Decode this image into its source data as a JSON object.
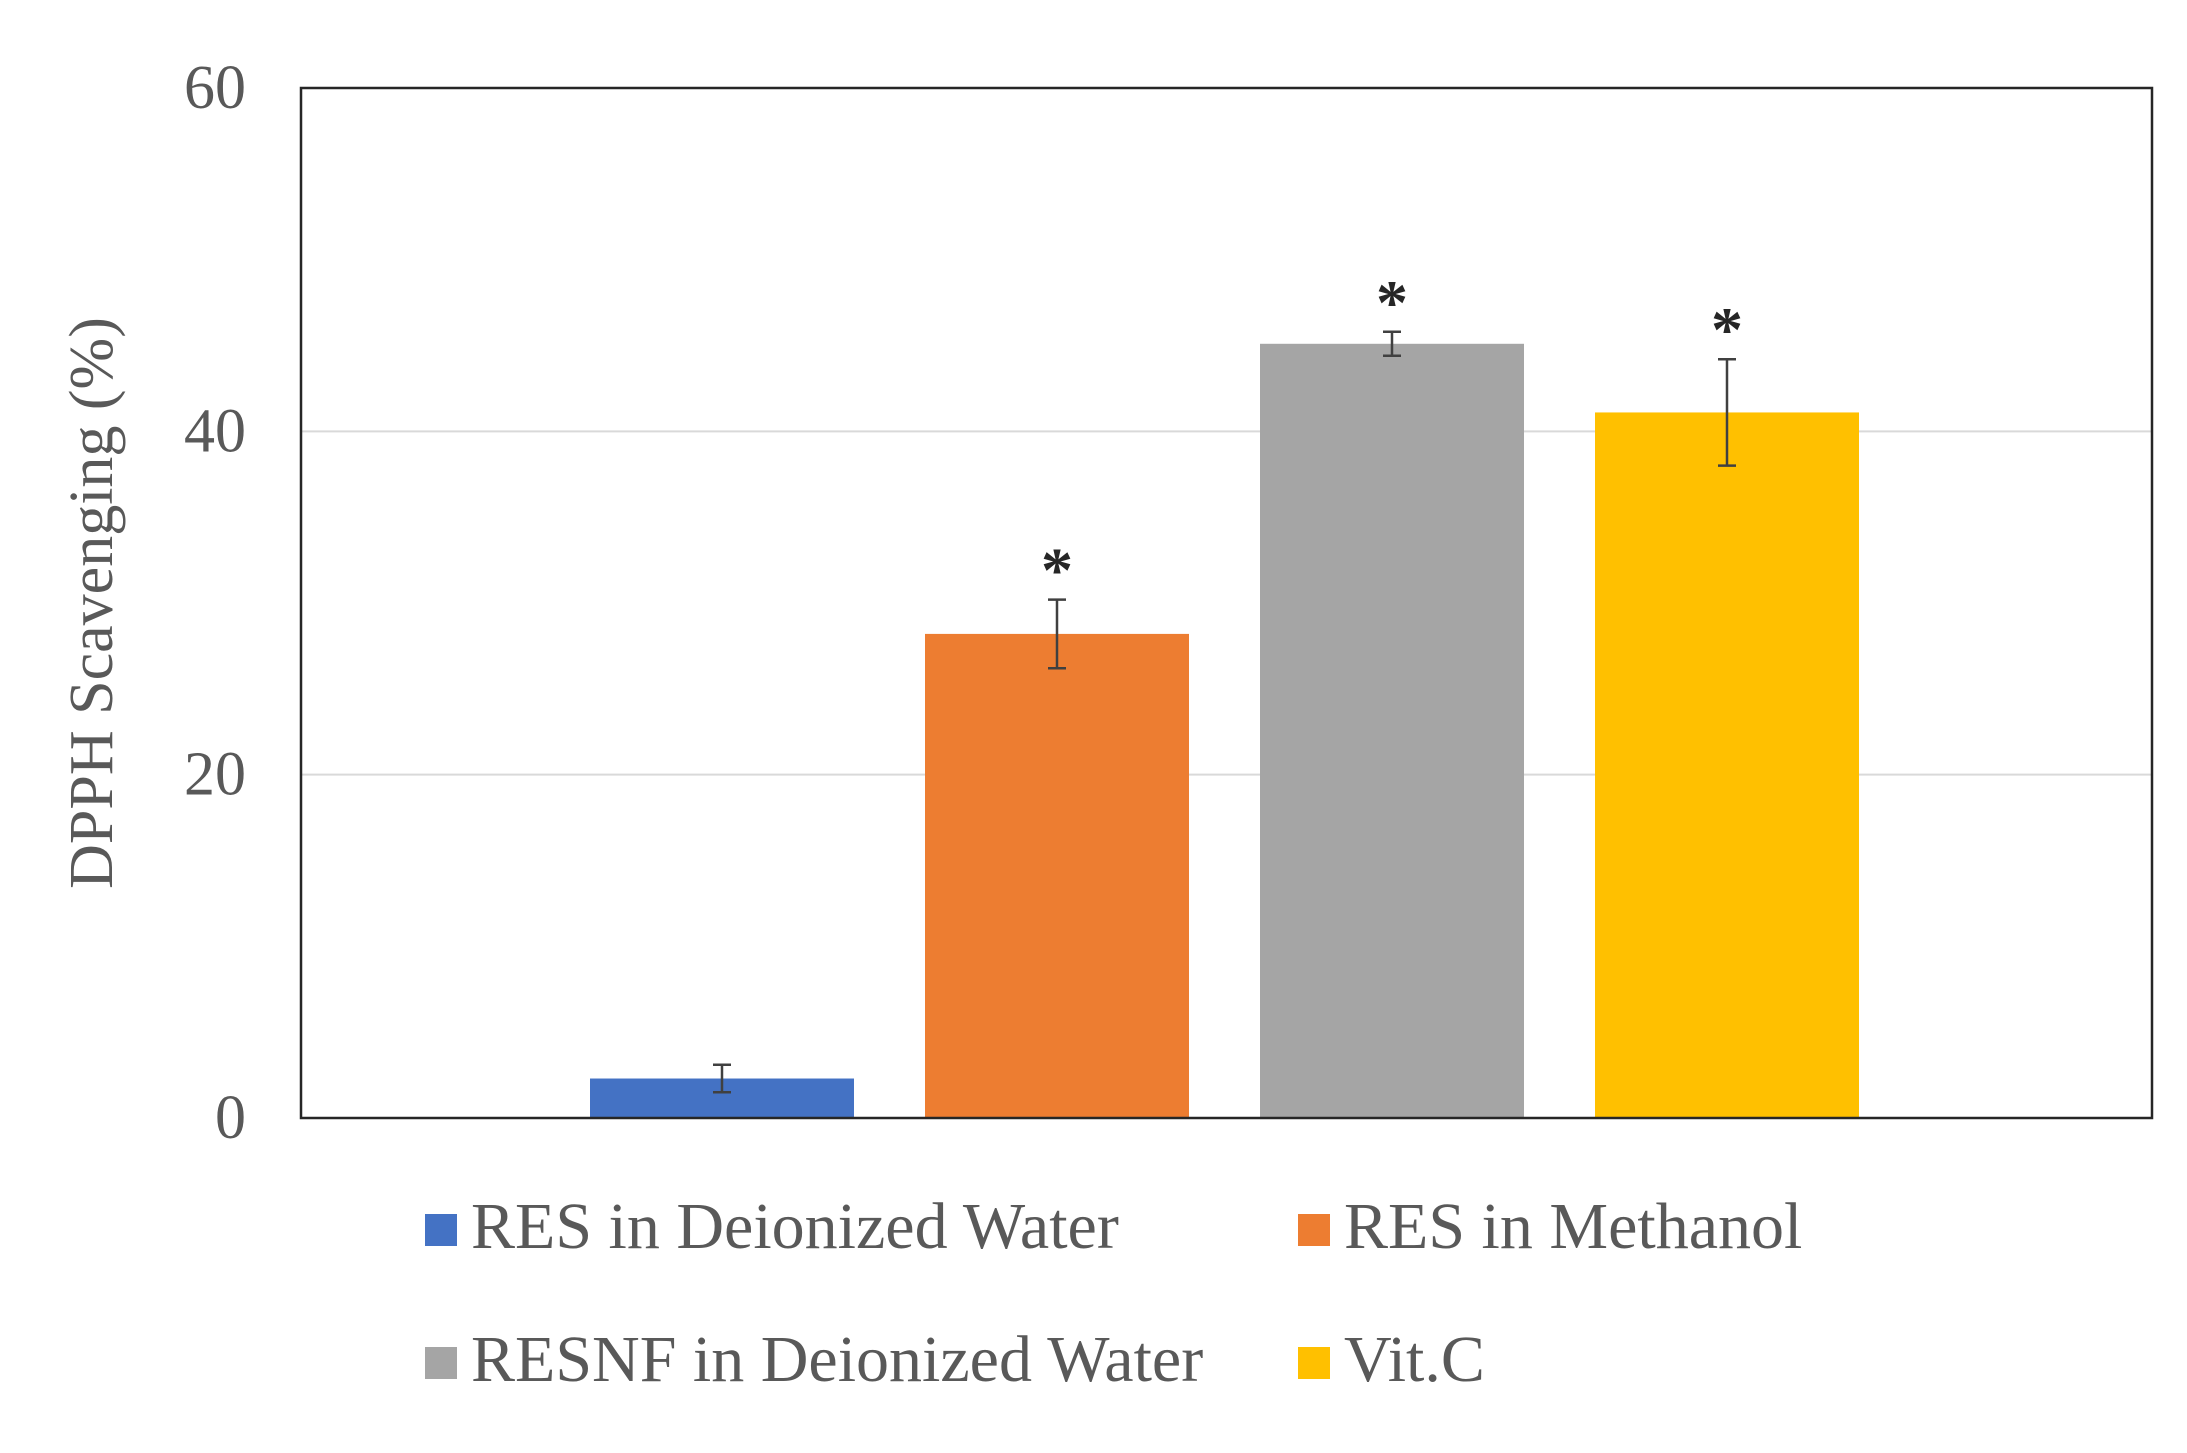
{
  "chart_data": {
    "type": "bar",
    "title": "",
    "xlabel": "",
    "ylabel": "DPPH Scavenging (%)",
    "ylim": [
      0,
      60
    ],
    "yticks": [
      0,
      20,
      40,
      60
    ],
    "grid": true,
    "legend_position": "bottom",
    "series": [
      {
        "name": "RES in Deionized Water",
        "value": 2.3,
        "error": 0.8,
        "color": "#4472C4",
        "significance": ""
      },
      {
        "name": "RES in Methanol",
        "value": 28.2,
        "error": 2.0,
        "color": "#ED7D31",
        "significance": "*"
      },
      {
        "name": "RESNF in Deionized Water",
        "value": 45.1,
        "error": 0.7,
        "color": "#A5A5A5",
        "significance": "*"
      },
      {
        "name": "Vit.C",
        "value": 41.1,
        "error": 3.1,
        "color": "#FFC000",
        "significance": "*"
      }
    ]
  }
}
